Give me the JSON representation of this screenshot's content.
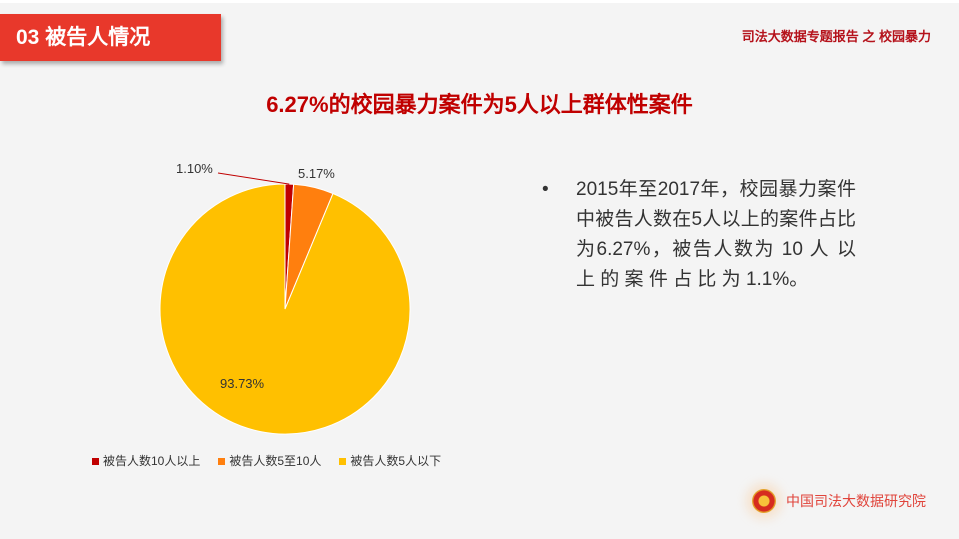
{
  "header": {
    "section": "03  被告人情况",
    "report": "司法大数据专题报告 之 校园暴力"
  },
  "title": "6.27%的校园暴力案件为5人以上群体性案件",
  "bullet": "2015年至2017年，校园暴力案件中被告人数在5人以上的案件占比为6.27%，被告人数为 10 人 以 上 的 案 件 占 比 为 1.1%。",
  "bullet_marker": "•",
  "chart_data": {
    "type": "pie",
    "categories": [
      "被告人数10人以上",
      "被告人数5至10人",
      "被告人数5人以下"
    ],
    "values": [
      1.1,
      5.17,
      93.73
    ],
    "labels": [
      "1.10%",
      "5.17%",
      "93.73%"
    ],
    "colors": [
      "#c00000",
      "#ff7f0e",
      "#ffc000"
    ],
    "legend_position": "bottom"
  },
  "footer": {
    "org": "中国司法大数据研究院"
  }
}
